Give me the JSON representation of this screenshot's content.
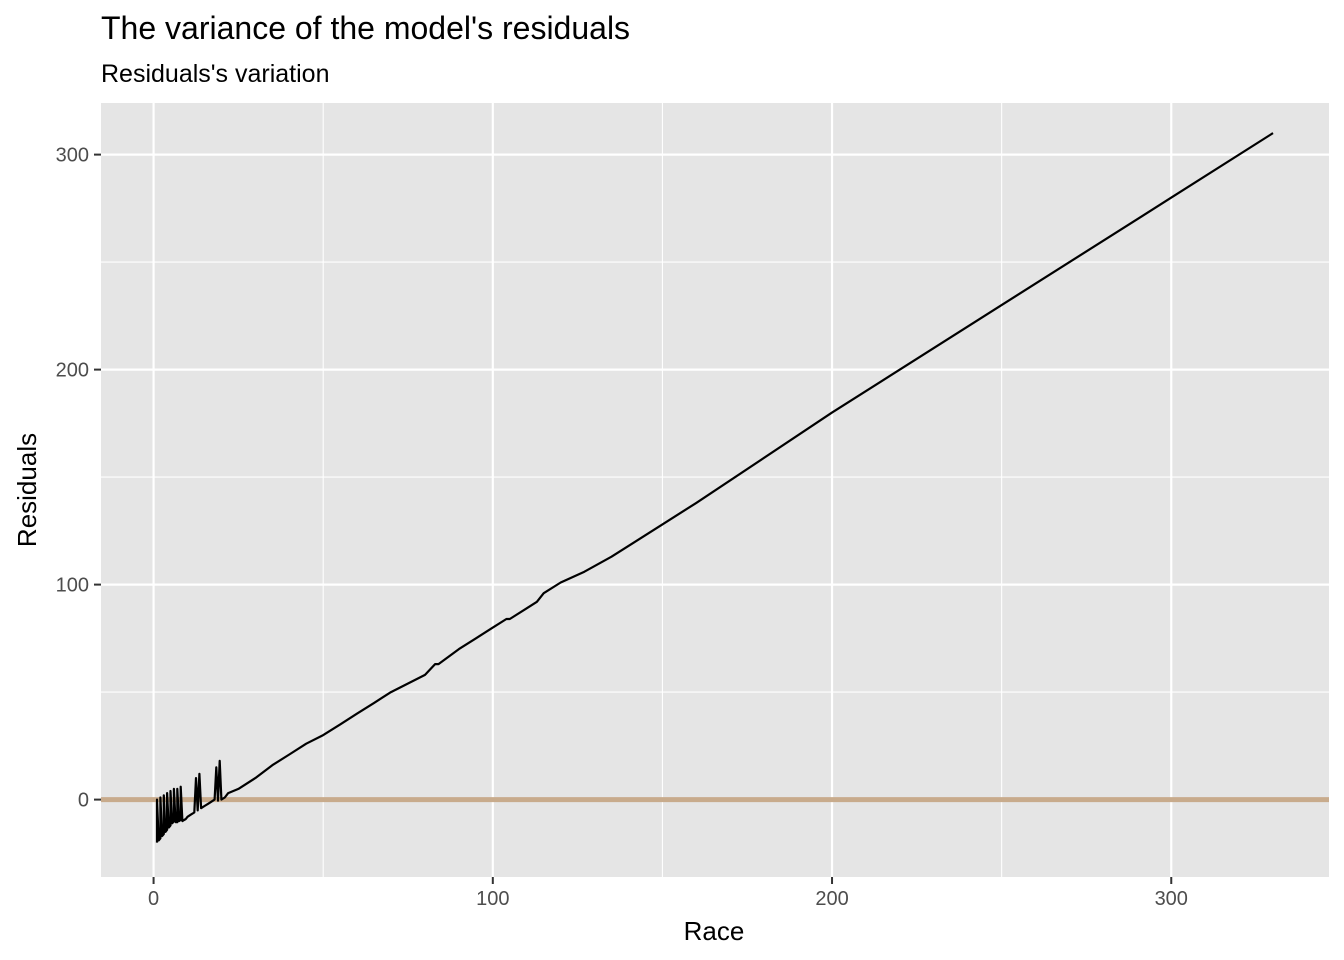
{
  "chart_data": {
    "type": "line",
    "title": "The variance of the model's residuals",
    "subtitle": "Residuals's variation",
    "xlabel": "Race",
    "ylabel": "Residuals",
    "xlim": [
      -15.5,
      346.5
    ],
    "ylim": [
      -36,
      324
    ],
    "x_ticks": [
      0,
      100,
      200,
      300
    ],
    "x_tick_labels": [
      "0",
      "100",
      "200",
      "300"
    ],
    "y_ticks": [
      0,
      100,
      200,
      300
    ],
    "y_tick_labels": [
      "0",
      "100",
      "200",
      "300"
    ],
    "grid": true,
    "reference_line": {
      "y": 0,
      "color": "#c8ab8c"
    },
    "colors": {
      "panel": "#e5e5e5",
      "grid": "#ffffff",
      "line": "#000000",
      "reference": "#c8ab8c"
    },
    "series": [
      {
        "color": "#000000",
        "x": [
          1,
          1,
          1.5,
          2,
          2,
          2.5,
          3,
          3,
          3.5,
          4,
          4,
          4.5,
          5,
          5,
          5.5,
          6,
          6,
          6.5,
          7,
          7,
          7.5,
          8,
          8,
          8.5,
          9,
          9,
          9.5,
          10,
          11,
          12,
          12.5,
          13,
          13.5,
          14,
          14.5,
          15,
          16,
          17,
          18,
          18.5,
          19,
          19.5,
          20,
          21,
          22,
          25,
          30,
          35,
          40,
          45,
          50,
          55,
          60,
          65,
          70,
          75,
          80,
          83,
          84,
          90,
          95,
          100,
          104,
          105,
          110,
          113,
          115,
          120,
          127,
          135,
          150,
          160,
          200,
          250,
          300,
          330
        ],
        "y": [
          -20,
          0,
          -19,
          -18,
          1,
          -17,
          -16,
          2,
          -15,
          -14,
          3,
          -13,
          -12,
          4,
          -11,
          -10,
          5,
          -10.5,
          -10.5,
          5,
          -10,
          -9.5,
          6,
          -10,
          -9.5,
          -9.5,
          -9,
          -8,
          -7,
          -6,
          10,
          -5,
          12,
          -4,
          -3.5,
          -3,
          -2,
          -1,
          0,
          15,
          -0.5,
          18,
          0,
          1,
          3,
          5,
          10,
          16,
          21,
          26,
          30,
          35,
          40,
          45,
          50,
          54,
          58,
          63,
          63,
          70,
          75,
          80,
          84,
          84,
          89,
          92,
          96,
          101,
          106,
          113,
          128,
          138,
          180,
          230,
          280,
          310
        ]
      }
    ]
  }
}
